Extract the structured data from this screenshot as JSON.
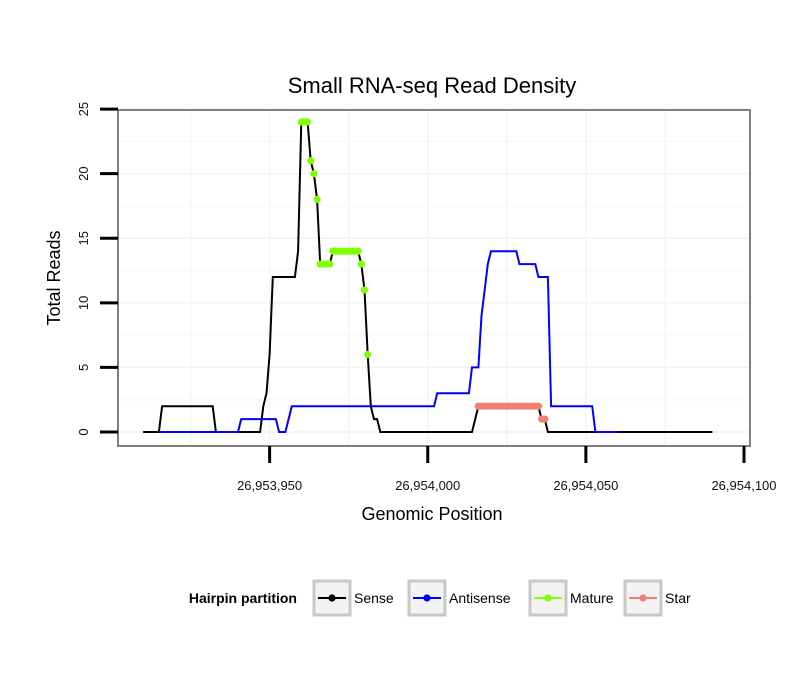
{
  "chart_data": {
    "type": "line",
    "title": "Small RNA-seq Read Density",
    "xlabel": "Genomic Position",
    "ylabel": "Total Reads",
    "xlim": [
      26953900,
      26954100
    ],
    "ylim": [
      -1,
      25
    ],
    "x_ticks": [
      26953950,
      26954000,
      26954050,
      26954100
    ],
    "x_tick_labels": [
      "26,953,950",
      "26,954,000",
      "26,954,050",
      "26,954,100"
    ],
    "y_ticks": [
      0,
      5,
      10,
      15,
      20,
      25
    ],
    "y_tick_labels": [
      "0",
      "5",
      "10",
      "15",
      "20",
      "25"
    ],
    "legend": {
      "title": "Hairpin partition",
      "position": "bottom",
      "items": [
        {
          "label": "Sense",
          "color": "#000000"
        },
        {
          "label": "Antisense",
          "color": "#0000ff"
        },
        {
          "label": "Mature",
          "color": "#7fff00"
        },
        {
          "label": "Star",
          "color": "#f08070"
        }
      ]
    },
    "series": [
      {
        "name": "Sense",
        "color": "#000000",
        "points": [
          [
            26953910,
            0
          ],
          [
            26953915,
            0
          ],
          [
            26953916,
            2
          ],
          [
            26953932,
            2
          ],
          [
            26953933,
            0
          ],
          [
            26953947,
            0
          ],
          [
            26953948,
            2
          ],
          [
            26953949,
            3
          ],
          [
            26953950,
            6
          ],
          [
            26953951,
            12
          ],
          [
            26953958,
            12
          ],
          [
            26953959,
            14
          ],
          [
            26953960,
            24
          ],
          [
            26953962,
            24
          ],
          [
            26953963,
            21
          ],
          [
            26953964,
            20
          ],
          [
            26953965,
            18
          ],
          [
            26953966,
            13
          ],
          [
            26953969,
            13
          ],
          [
            26953970,
            14
          ],
          [
            26953978,
            14
          ],
          [
            26953979,
            13
          ],
          [
            26953980,
            11
          ],
          [
            26953981,
            6
          ],
          [
            26953982,
            2
          ],
          [
            26953983,
            1
          ],
          [
            26953984,
            1
          ],
          [
            26953985,
            0
          ],
          [
            26954014,
            0
          ],
          [
            26954015,
            1
          ],
          [
            26954016,
            2
          ],
          [
            26954035,
            2
          ],
          [
            26954036,
            1
          ],
          [
            26954037,
            1
          ],
          [
            26954038,
            0
          ],
          [
            26954090,
            0
          ]
        ]
      },
      {
        "name": "Antisense",
        "color": "#0000ff",
        "points": [
          [
            26953915,
            0
          ],
          [
            26953940,
            0
          ],
          [
            26953941,
            1
          ],
          [
            26953952,
            1
          ],
          [
            26953953,
            0
          ],
          [
            26953955,
            0
          ],
          [
            26953956,
            1
          ],
          [
            26953957,
            2
          ],
          [
            26953976,
            2
          ],
          [
            26953979,
            2
          ],
          [
            26954002,
            2
          ],
          [
            26954003,
            3
          ],
          [
            26954013,
            3
          ],
          [
            26954014,
            5
          ],
          [
            26954016,
            5
          ],
          [
            26954017,
            9
          ],
          [
            26954018,
            11
          ],
          [
            26954019,
            13
          ],
          [
            26954020,
            14
          ],
          [
            26954028,
            14
          ],
          [
            26954029,
            13
          ],
          [
            26954034,
            13
          ],
          [
            26954035,
            12
          ],
          [
            26954038,
            12
          ],
          [
            26954039,
            2
          ],
          [
            26954052,
            2
          ],
          [
            26954053,
            0
          ],
          [
            26954060,
            0
          ]
        ]
      },
      {
        "name": "Mature",
        "color": "#7fff00",
        "points": [
          [
            26953960,
            24
          ],
          [
            26953961,
            24
          ],
          [
            26953962,
            24
          ],
          [
            26953963,
            21
          ],
          [
            26953964,
            20
          ],
          [
            26953965,
            18
          ],
          [
            26953966,
            13
          ],
          [
            26953967,
            13
          ],
          [
            26953968,
            13
          ],
          [
            26953969,
            13
          ],
          [
            26953970,
            14
          ],
          [
            26953971,
            14
          ],
          [
            26953972,
            14
          ],
          [
            26953973,
            14
          ],
          [
            26953974,
            14
          ],
          [
            26953975,
            14
          ],
          [
            26953976,
            14
          ],
          [
            26953977,
            14
          ],
          [
            26953978,
            14
          ],
          [
            26953979,
            13
          ],
          [
            26953980,
            11
          ],
          [
            26953981,
            6
          ]
        ]
      },
      {
        "name": "Star",
        "color": "#f08070",
        "points": [
          [
            26954016,
            2
          ],
          [
            26954017,
            2
          ],
          [
            26954018,
            2
          ],
          [
            26954019,
            2
          ],
          [
            26954020,
            2
          ],
          [
            26954021,
            2
          ],
          [
            26954022,
            2
          ],
          [
            26954023,
            2
          ],
          [
            26954024,
            2
          ],
          [
            26954025,
            2
          ],
          [
            26954026,
            2
          ],
          [
            26954027,
            2
          ],
          [
            26954028,
            2
          ],
          [
            26954029,
            2
          ],
          [
            26954030,
            2
          ],
          [
            26954031,
            2
          ],
          [
            26954032,
            2
          ],
          [
            26954033,
            2
          ],
          [
            26954034,
            2
          ],
          [
            26954035,
            2
          ],
          [
            26954036,
            1
          ],
          [
            26954037,
            1
          ]
        ]
      }
    ]
  }
}
